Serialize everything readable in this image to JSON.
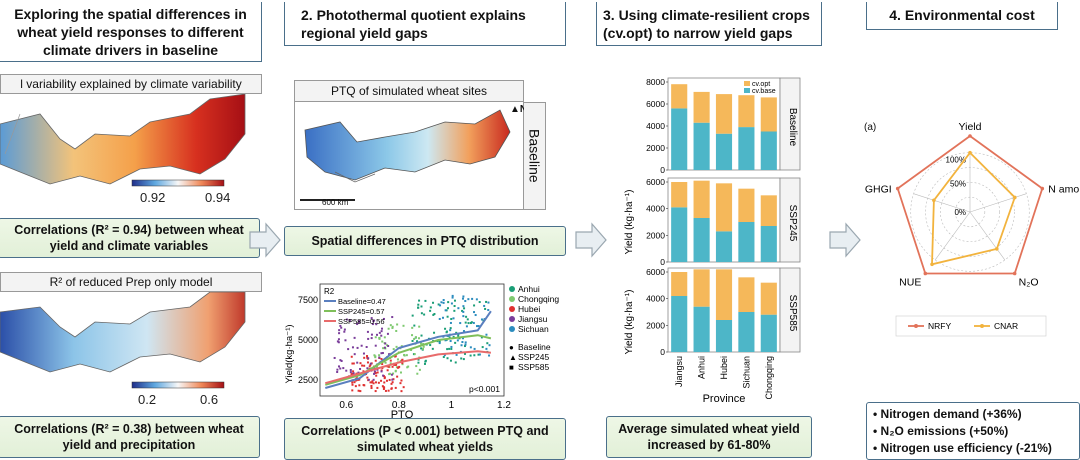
{
  "panel1": {
    "title": "Exploring the spatial differences in\nwheat yield responses to different\nclimate drivers in baseline",
    "map_top_header": "l variability explained by climate variability",
    "map_top_ticks": [
      "0.92",
      "0.94"
    ],
    "box1": "Correlations (R² = 0.94) between wheat\nyield and climate variables",
    "map_bottom_header": "R² of reduced Prep only model",
    "map_bottom_ticks": [
      "0.2",
      "0.6"
    ],
    "box2": "Correlations (R² = 0.38) between wheat\nyield and precipitation"
  },
  "panel2": {
    "title": "2. Photothermal quotient explains\nregional yield gaps",
    "map_header": "PTQ of simulated wheat sites",
    "map_side_label": "Baseline",
    "north": "N",
    "scale": "600 km",
    "box_mid": "Spatial differences in PTQ distribution",
    "box_bottom": "Correlations (P < 0.001) between PTQ and\nsimulated wheat yields"
  },
  "panel3": {
    "title": "3. Using climate-resilient crops\n(cv.opt) to narrow yield gaps",
    "box_bottom": "Average simulated wheat yield\nincreased by 61-80%"
  },
  "panel4": {
    "title": "4. Environmental cost",
    "label_a": "(a)",
    "bullets": [
      "Nitrogen demand (+36%)",
      "N₂O emissions (+50%)",
      "Nitrogen use efficiency (-21%)"
    ]
  },
  "scatter_text": {
    "r2_title": "R2",
    "legend_baseline": "Baseline=0.47",
    "legend_ssp245": "SSP245=0.57",
    "legend_ssp585": "SSP585=0.56",
    "provinces": [
      "Anhui",
      "Chongqing",
      "Hubei",
      "Jiangsu",
      "Sichuan"
    ],
    "scenarios": [
      "Baseline",
      "SSP245",
      "SSP585"
    ],
    "p_label": "p<0.001",
    "ylabel": "Yield(kg·ha⁻¹)",
    "xlabel": "PTQ"
  },
  "bars_text": {
    "ylabel": "Yield (kg·ha⁻¹)",
    "xlabel": "Province",
    "legend": [
      "cv.opt",
      "cv.base"
    ],
    "panels": [
      "Baseline",
      "SSP245",
      "SSP585"
    ]
  },
  "radar_text": {
    "axes": [
      "Yield",
      "N amo",
      "N₂O",
      "NUE",
      "GHGI"
    ],
    "rings": [
      "100%",
      "50%",
      "0%"
    ],
    "legend": [
      "NRFY",
      "CNAR"
    ]
  },
  "colors": {
    "cv_opt": "#f5b85a",
    "cv_base": "#4db6c8",
    "nrfy": "#e2735a",
    "cnar": "#f2b33d",
    "box_border": "#4a6f8a",
    "box_fill": "#e6f2dc"
  },
  "chart_data": [
    {
      "type": "bar",
      "panel": "Baseline",
      "categories": [
        "Jiangsu",
        "Anhui",
        "Hubei",
        "Sichuan",
        "Chongqing"
      ],
      "series": [
        {
          "name": "cv.base",
          "values": [
            5600,
            4300,
            3300,
            3900,
            3500
          ]
        },
        {
          "name": "cv.opt",
          "values": [
            2200,
            2800,
            3600,
            2900,
            3100
          ]
        }
      ],
      "ylim": [
        0,
        8000
      ],
      "yticks": [
        0,
        2000,
        4000,
        6000,
        8000
      ],
      "ylabel": "Yield (kg·ha⁻¹)",
      "xlabel": "Province"
    },
    {
      "type": "bar",
      "panel": "SSP245",
      "categories": [
        "Jiangsu",
        "Anhui",
        "Hubei",
        "Sichuan",
        "Chongqing"
      ],
      "series": [
        {
          "name": "cv.base",
          "values": [
            4100,
            3300,
            2300,
            3000,
            2700
          ]
        },
        {
          "name": "cv.opt",
          "values": [
            1900,
            2800,
            3600,
            2500,
            2300
          ]
        }
      ],
      "ylim": [
        0,
        6000
      ],
      "yticks": [
        0,
        2000,
        4000,
        6000
      ],
      "ylabel": "Yield (kg·ha⁻¹)"
    },
    {
      "type": "bar",
      "panel": "SSP585",
      "categories": [
        "Jiangsu",
        "Anhui",
        "Hubei",
        "Sichuan",
        "Chongqing"
      ],
      "series": [
        {
          "name": "cv.base",
          "values": [
            4200,
            3400,
            2400,
            3000,
            2800
          ]
        },
        {
          "name": "cv.opt",
          "values": [
            1800,
            2800,
            3800,
            2600,
            2400
          ]
        }
      ],
      "ylim": [
        0,
        6000
      ],
      "yticks": [
        0,
        2000,
        4000,
        6000
      ],
      "ylabel": "Yield (kg·ha⁻¹)"
    },
    {
      "type": "scatter",
      "xlim": [
        0.5,
        1.2
      ],
      "ylim": [
        1500,
        8500
      ],
      "xticks": [
        0.6,
        0.8,
        1.0,
        1.2
      ],
      "yticks": [
        2500,
        5000,
        7500
      ],
      "xlabel": "PTQ",
      "ylabel": "Yield(kg·ha⁻¹)",
      "series": [
        {
          "name": "Anhui",
          "color": "#1a9e76",
          "x_range": [
            0.85,
            1.15
          ],
          "y_range": [
            3500,
            7500
          ],
          "n": 90
        },
        {
          "name": "Chongqing",
          "color": "#7ec96f",
          "x_range": [
            0.7,
            0.9
          ],
          "y_range": [
            2800,
            6000
          ],
          "n": 70
        },
        {
          "name": "Hubei",
          "color": "#e03030",
          "x_range": [
            0.62,
            0.82
          ],
          "y_range": [
            1800,
            4000
          ],
          "n": 110
        },
        {
          "name": "Jiangsu",
          "color": "#7a3d9a",
          "x_range": [
            0.55,
            0.78
          ],
          "y_range": [
            2500,
            6500
          ],
          "n": 80
        },
        {
          "name": "Sichuan",
          "color": "#2b8cbe",
          "x_range": [
            0.95,
            1.15
          ],
          "y_range": [
            4000,
            7800
          ],
          "n": 60
        }
      ],
      "fits": [
        {
          "name": "Baseline",
          "r2": 0.47,
          "color": "#5a7fbf",
          "x": [
            0.52,
            0.65,
            0.8,
            0.95,
            1.1,
            1.15
          ],
          "y": [
            2000,
            2600,
            4500,
            5200,
            5600,
            6800
          ]
        },
        {
          "name": "SSP245",
          "r2": 0.57,
          "color": "#7fbf5a",
          "x": [
            0.52,
            0.65,
            0.8,
            0.95,
            1.1,
            1.15
          ],
          "y": [
            2200,
            2800,
            4200,
            5000,
            5300,
            5100
          ]
        },
        {
          "name": "SSP585",
          "r2": 0.56,
          "color": "#e86b6b",
          "x": [
            0.52,
            0.65,
            0.8,
            0.95,
            1.1,
            1.15
          ],
          "y": [
            2300,
            2900,
            3600,
            4100,
            4300,
            4200
          ]
        }
      ]
    },
    {
      "type": "radar",
      "axes": [
        "Yield",
        "N amo",
        "N₂O",
        "NUE",
        "GHGI"
      ],
      "series": [
        {
          "name": "NRFY",
          "values": [
            1.0,
            1.0,
            1.0,
            1.0,
            1.0
          ]
        },
        {
          "name": "CNAR",
          "values": [
            0.78,
            0.62,
            0.6,
            0.85,
            0.5
          ]
        }
      ]
    }
  ]
}
